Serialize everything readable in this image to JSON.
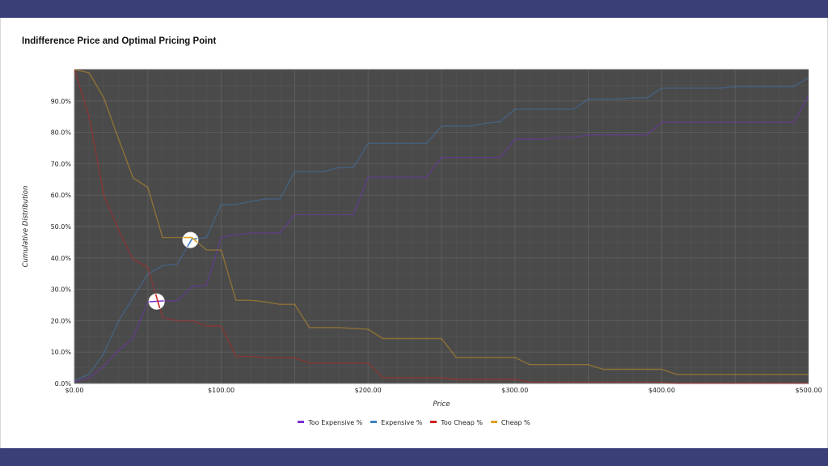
{
  "chart_data": {
    "type": "line",
    "title": "Indifference Price and Optimal Pricing Point",
    "xlabel": "Price",
    "ylabel": "Cumulative Distribution",
    "xlim": [
      0,
      500
    ],
    "ylim": [
      0,
      100
    ],
    "x_ticks": [
      "$0.00",
      "$100.00",
      "$200.00",
      "$300.00",
      "$400.00",
      "$500.00"
    ],
    "y_ticks": [
      "0.0%",
      "10.0%",
      "20.0%",
      "30.0%",
      "40.0%",
      "50.0%",
      "60.0%",
      "70.0%",
      "80.0%",
      "90.0%"
    ],
    "grid": true,
    "legend_position": "bottom",
    "series": [
      {
        "name": "Too Expensive %",
        "color": "#7b2fd0",
        "x": [
          0,
          10,
          20,
          30,
          40,
          50,
          60,
          70,
          80,
          90,
          100,
          110,
          120,
          130,
          140,
          150,
          160,
          170,
          180,
          190,
          200,
          210,
          220,
          230,
          240,
          250,
          260,
          270,
          280,
          290,
          300,
          310,
          320,
          330,
          340,
          350,
          360,
          370,
          380,
          390,
          400,
          410,
          420,
          430,
          440,
          450,
          460,
          470,
          480,
          490,
          500
        ],
        "values": [
          0.5,
          1.8,
          5.5,
          10.5,
          14.5,
          26,
          26.3,
          26.3,
          30.8,
          31.3,
          46.5,
          47.4,
          47.9,
          47.9,
          47.9,
          53.8,
          53.8,
          53.8,
          53.8,
          53.8,
          65.7,
          65.7,
          65.7,
          65.7,
          65.7,
          72,
          72,
          72,
          72,
          72,
          77.8,
          77.8,
          77.8,
          78.4,
          78.4,
          79.2,
          79.2,
          79.2,
          79.2,
          79.2,
          83.2,
          83.2,
          83.2,
          83.2,
          83.2,
          83.2,
          83.2,
          83.2,
          83.2,
          83.2,
          91.7
        ]
      },
      {
        "name": "Expensive %",
        "color": "#3d7fc0",
        "x": [
          0,
          10,
          20,
          30,
          40,
          50,
          60,
          70,
          80,
          90,
          100,
          110,
          120,
          130,
          140,
          150,
          160,
          170,
          180,
          190,
          200,
          210,
          220,
          230,
          240,
          250,
          260,
          270,
          280,
          290,
          300,
          310,
          320,
          330,
          340,
          350,
          360,
          370,
          380,
          390,
          400,
          410,
          420,
          430,
          440,
          450,
          460,
          470,
          480,
          490,
          500
        ],
        "values": [
          1,
          2.9,
          9.5,
          19.8,
          27.4,
          34.9,
          37.5,
          38,
          46,
          46.5,
          57,
          57,
          58,
          58.8,
          58.8,
          67.5,
          67.5,
          67.5,
          68.8,
          68.8,
          76.5,
          76.5,
          76.5,
          76.5,
          76.5,
          82,
          82,
          82,
          82.9,
          83.4,
          87.4,
          87.4,
          87.4,
          87.4,
          87.4,
          90.6,
          90.6,
          90.6,
          91,
          91,
          94.1,
          94.1,
          94.1,
          94.1,
          94.1,
          94.6,
          94.6,
          94.6,
          94.6,
          94.6,
          97.5
        ]
      },
      {
        "name": "Too Cheap %",
        "color": "#d02020",
        "x": [
          0,
          10,
          20,
          30,
          40,
          50,
          60,
          70,
          80,
          90,
          100,
          110,
          120,
          130,
          140,
          150,
          160,
          170,
          180,
          190,
          200,
          210,
          220,
          230,
          240,
          250,
          260,
          270,
          280,
          290,
          300,
          310,
          320,
          330,
          340,
          350,
          360,
          370,
          380,
          390,
          400,
          410,
          420,
          430,
          440,
          450,
          460,
          470,
          480,
          490,
          500
        ],
        "values": [
          100,
          85,
          60,
          49,
          39.5,
          37,
          21,
          20,
          20,
          18.3,
          18.3,
          8.6,
          8.6,
          8.2,
          8.2,
          8.2,
          6.5,
          6.5,
          6.5,
          6.5,
          6.5,
          1.8,
          1.8,
          1.8,
          1.8,
          1.8,
          1.3,
          1.3,
          1.3,
          1.3,
          1.3,
          0.4,
          0.4,
          0.4,
          0.4,
          0.4,
          0.4,
          0.4,
          0.4,
          0.4,
          0.4,
          0,
          0,
          0,
          0,
          0,
          0,
          0,
          0,
          0,
          0
        ]
      },
      {
        "name": "Cheap %",
        "color": "#e0a020",
        "x": [
          0,
          10,
          20,
          30,
          40,
          50,
          60,
          70,
          80,
          90,
          100,
          110,
          120,
          130,
          140,
          150,
          160,
          170,
          180,
          190,
          200,
          210,
          220,
          230,
          240,
          250,
          260,
          270,
          280,
          290,
          300,
          310,
          320,
          330,
          340,
          350,
          360,
          370,
          380,
          390,
          400,
          410,
          420,
          430,
          440,
          450,
          460,
          470,
          480,
          490,
          500
        ],
        "values": [
          100,
          99,
          91,
          78,
          65.5,
          62.5,
          46.5,
          46.5,
          46.5,
          42.5,
          42.5,
          26.5,
          26.5,
          26,
          25.2,
          25.2,
          17.8,
          17.8,
          17.8,
          17.5,
          17.3,
          14.3,
          14.3,
          14.3,
          14.3,
          14.3,
          8.3,
          8.3,
          8.3,
          8.3,
          8.3,
          6,
          6,
          6,
          6,
          6,
          4.5,
          4.5,
          4.5,
          4.5,
          4.5,
          2.9,
          2.9,
          2.9,
          2.9,
          2.9,
          2.9,
          2.9,
          2.9,
          2.9,
          2.9
        ]
      }
    ],
    "markers": [
      {
        "x": 56,
        "y": 26.1
      },
      {
        "x": 79,
        "y": 45.7
      }
    ]
  }
}
